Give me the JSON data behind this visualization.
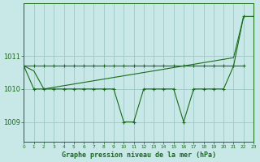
{
  "background_color": "#c8e8e8",
  "grid_color": "#a0c8c8",
  "line_color": "#1a6b1a",
  "xlabel": "Graphe pression niveau de la mer (hPa)",
  "xlim": [
    0,
    23
  ],
  "ylim": [
    1008.4,
    1012.6
  ],
  "yticks": [
    1009,
    1010,
    1011
  ],
  "xtick_labels": [
    "0",
    "1",
    "2",
    "3",
    "4",
    "5",
    "6",
    "7",
    "8",
    "9",
    "10",
    "11",
    "12",
    "13",
    "14",
    "15",
    "16",
    "17",
    "18",
    "19",
    "20",
    "21",
    "22",
    "23"
  ],
  "series_flat": {
    "x": [
      0,
      1,
      2,
      3,
      4,
      5,
      6,
      7,
      8,
      9,
      10,
      11,
      12,
      13,
      14,
      15,
      16,
      17,
      18,
      19,
      20,
      21,
      22
    ],
    "y": [
      1010.7,
      1010.7,
      1010.7,
      1010.7,
      1010.7,
      1010.7,
      1010.7,
      1010.7,
      1010.7,
      1010.7,
      1010.7,
      1010.7,
      1010.7,
      1010.7,
      1010.7,
      1010.7,
      1010.7,
      1010.7,
      1010.7,
      1010.7,
      1010.7,
      1010.7,
      1010.7
    ]
  },
  "series_rising": {
    "x": [
      0,
      1,
      2,
      3,
      4,
      5,
      6,
      7,
      8,
      9,
      10,
      11,
      12,
      13,
      14,
      15,
      16,
      17,
      18,
      19,
      20,
      21,
      22,
      23
    ],
    "y": [
      1010.7,
      1010.55,
      1010.0,
      1010.05,
      1010.1,
      1010.15,
      1010.2,
      1010.25,
      1010.3,
      1010.35,
      1010.4,
      1010.45,
      1010.5,
      1010.55,
      1010.6,
      1010.65,
      1010.7,
      1010.75,
      1010.8,
      1010.85,
      1010.9,
      1010.95,
      1012.2,
      1012.2
    ]
  },
  "series_jagged": {
    "x": [
      0,
      1,
      2,
      3,
      4,
      5,
      6,
      7,
      8,
      9,
      10,
      11,
      12,
      13,
      14,
      15,
      16,
      17,
      18,
      19,
      20,
      21,
      22,
      23
    ],
    "y": [
      1010.7,
      1010.0,
      1010.0,
      1010.0,
      1010.0,
      1010.0,
      1010.0,
      1010.0,
      1010.0,
      1010.0,
      1009.0,
      1009.0,
      1010.0,
      1010.0,
      1010.0,
      1010.0,
      1009.0,
      1010.0,
      1010.0,
      1010.0,
      1010.0,
      1010.7,
      1012.2,
      1012.2
    ]
  }
}
